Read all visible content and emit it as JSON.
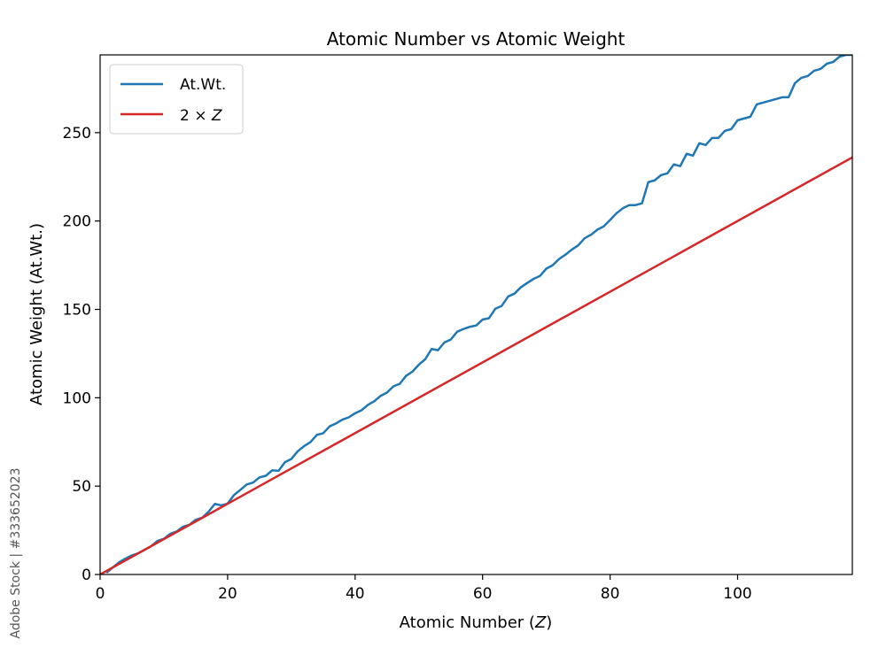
{
  "watermark": "Adobe Stock | #333652023",
  "chart_data": {
    "type": "line",
    "title": "Atomic Number vs Atomic Weight",
    "xlabel_prefix": "Atomic Number (",
    "xlabel_var": "Z",
    "xlabel_suffix": ")",
    "ylabel": "Atomic Weight (At.Wt.)",
    "xlim": [
      0,
      118
    ],
    "ylim": [
      0,
      294
    ],
    "xticks": [
      0,
      20,
      40,
      60,
      80,
      100
    ],
    "yticks": [
      0,
      50,
      100,
      150,
      200,
      250
    ],
    "grid": false,
    "legend": {
      "placement": "top-left",
      "entries": [
        {
          "label": "At.Wt.",
          "color": "#1f77b4"
        },
        {
          "label_prefix": "2 × ",
          "label_var": "Z",
          "color": "#d62728"
        }
      ]
    },
    "series": [
      {
        "name": "At.Wt.",
        "color": "#1f77b4",
        "x": [
          1,
          2,
          3,
          4,
          5,
          6,
          7,
          8,
          9,
          10,
          11,
          12,
          13,
          14,
          15,
          16,
          17,
          18,
          19,
          20,
          21,
          22,
          23,
          24,
          25,
          26,
          27,
          28,
          29,
          30,
          31,
          32,
          33,
          34,
          35,
          36,
          37,
          38,
          39,
          40,
          41,
          42,
          43,
          44,
          45,
          46,
          47,
          48,
          49,
          50,
          51,
          52,
          53,
          54,
          55,
          56,
          57,
          58,
          59,
          60,
          61,
          62,
          63,
          64,
          65,
          66,
          67,
          68,
          69,
          70,
          71,
          72,
          73,
          74,
          75,
          76,
          77,
          78,
          79,
          80,
          81,
          82,
          83,
          84,
          85,
          86,
          87,
          88,
          89,
          90,
          91,
          92,
          93,
          94,
          95,
          96,
          97,
          98,
          99,
          100,
          101,
          102,
          103,
          104,
          105,
          106,
          107,
          108,
          109,
          110,
          111,
          112,
          113,
          114,
          115,
          116,
          117,
          118
        ],
        "y": [
          1.008,
          4.003,
          6.94,
          9.012,
          10.81,
          12.011,
          14.007,
          15.999,
          18.998,
          20.18,
          22.99,
          24.305,
          26.982,
          28.085,
          30.974,
          32.06,
          35.45,
          39.948,
          39.098,
          40.078,
          44.956,
          47.867,
          50.942,
          51.996,
          54.938,
          55.845,
          58.933,
          58.693,
          63.546,
          65.38,
          69.723,
          72.63,
          74.922,
          78.971,
          79.904,
          83.798,
          85.468,
          87.62,
          88.906,
          91.224,
          92.906,
          95.95,
          98,
          101.07,
          102.91,
          106.42,
          107.87,
          112.41,
          114.82,
          118.71,
          121.76,
          127.6,
          126.9,
          131.29,
          132.91,
          137.33,
          138.91,
          140.12,
          140.91,
          144.24,
          145,
          150.36,
          151.96,
          157.25,
          158.93,
          162.5,
          164.93,
          167.26,
          168.93,
          173.05,
          174.97,
          178.49,
          180.95,
          183.84,
          186.21,
          190.23,
          192.22,
          195.08,
          196.97,
          200.59,
          204.38,
          207.2,
          208.98,
          209,
          210,
          222,
          223,
          226,
          227,
          232.04,
          231.04,
          238.03,
          237,
          244,
          243,
          247,
          247,
          251,
          252,
          257,
          258,
          259,
          266,
          267,
          268,
          269,
          270,
          270,
          278,
          281,
          282,
          285,
          286,
          289,
          290,
          293,
          294,
          294
        ]
      },
      {
        "name_prefix": "2 × ",
        "name_var": "Z",
        "color": "#d62728",
        "x": [
          0,
          118
        ],
        "y": [
          0,
          236
        ]
      }
    ]
  }
}
